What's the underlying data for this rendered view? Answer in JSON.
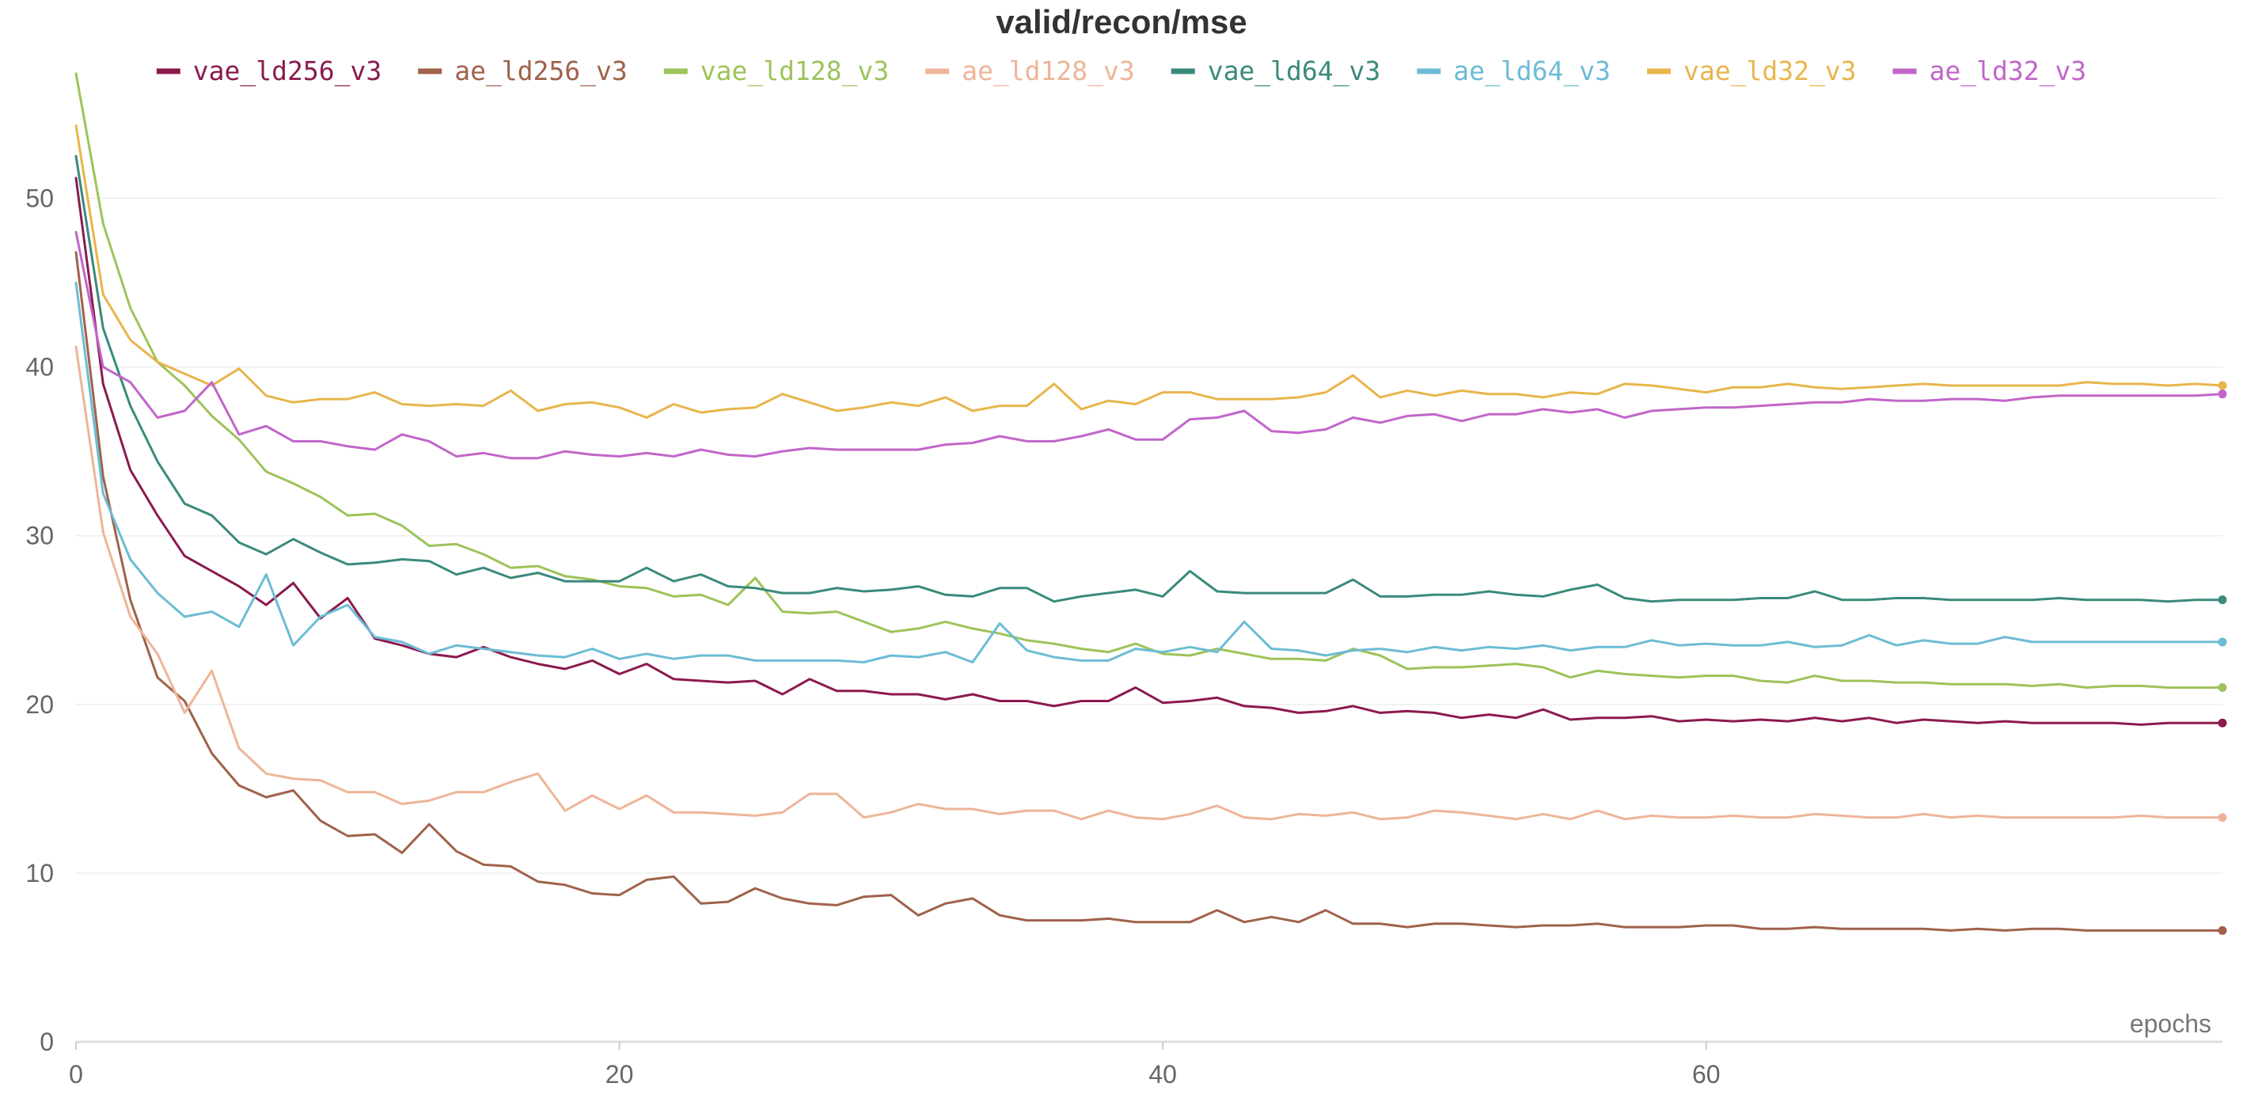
{
  "chart_data": {
    "type": "line",
    "title": "valid/recon/mse",
    "xlabel": "epochs",
    "ylabel": "",
    "xlim": [
      0,
      79
    ],
    "ylim": [
      0,
      58
    ],
    "x_ticks": [
      0,
      20,
      40,
      60
    ],
    "y_ticks": [
      0,
      10,
      20,
      30,
      40,
      50
    ],
    "grid": true,
    "legend_position": "top",
    "end_markers": true,
    "series": [
      {
        "name": "vae_ld256_v3",
        "color": "#8b1a4f",
        "values": [
          51.2,
          39.0,
          33.9,
          31.2,
          28.8,
          27.9,
          27.0,
          25.9,
          27.2,
          25.1,
          26.3,
          23.9,
          23.5,
          23.0,
          22.8,
          23.4,
          22.8,
          22.4,
          22.1,
          22.6,
          21.8,
          22.4,
          21.5,
          21.4,
          21.3,
          21.4,
          20.6,
          21.5,
          20.8,
          20.8,
          20.6,
          20.6,
          20.3,
          20.6,
          20.2,
          20.2,
          19.9,
          20.2,
          20.2,
          21.0,
          20.1,
          20.2,
          20.4,
          19.9,
          19.8,
          19.5,
          19.6,
          19.9,
          19.5,
          19.6,
          19.5,
          19.2,
          19.4,
          19.2,
          19.7,
          19.1,
          19.2,
          19.2,
          19.3,
          19.0,
          19.1,
          19.0,
          19.1,
          19.0,
          19.2,
          19.0,
          19.2,
          18.9,
          19.1,
          19.0,
          18.9,
          19.0,
          18.9,
          18.9,
          18.9,
          18.9,
          18.8,
          18.9,
          18.9,
          18.9
        ]
      },
      {
        "name": "ae_ld256_v3",
        "color": "#a0624a",
        "values": [
          46.8,
          33.5,
          26.2,
          21.6,
          20.2,
          17.1,
          15.2,
          14.5,
          14.9,
          13.1,
          12.2,
          12.3,
          11.2,
          12.9,
          11.3,
          10.5,
          10.4,
          9.5,
          9.3,
          8.8,
          8.7,
          9.6,
          9.8,
          8.2,
          8.3,
          9.1,
          8.5,
          8.2,
          8.1,
          8.6,
          8.7,
          7.5,
          8.2,
          8.5,
          7.5,
          7.2,
          7.2,
          7.2,
          7.3,
          7.1,
          7.1,
          7.1,
          7.8,
          7.1,
          7.4,
          7.1,
          7.8,
          7.0,
          7.0,
          6.8,
          7.0,
          7.0,
          6.9,
          6.8,
          6.9,
          6.9,
          7.0,
          6.8,
          6.8,
          6.8,
          6.9,
          6.9,
          6.7,
          6.7,
          6.8,
          6.7,
          6.7,
          6.7,
          6.7,
          6.6,
          6.7,
          6.6,
          6.7,
          6.7,
          6.6,
          6.6,
          6.6,
          6.6,
          6.6,
          6.6
        ]
      },
      {
        "name": "vae_ld128_v3",
        "color": "#9dc35a",
        "values": [
          57.4,
          48.5,
          43.5,
          40.3,
          38.9,
          37.1,
          35.7,
          33.8,
          33.1,
          32.3,
          31.2,
          31.3,
          30.6,
          29.4,
          29.5,
          28.9,
          28.1,
          28.2,
          27.6,
          27.4,
          27.0,
          26.9,
          26.4,
          26.5,
          25.9,
          27.5,
          25.5,
          25.4,
          25.5,
          24.9,
          24.3,
          24.5,
          24.9,
          24.5,
          24.2,
          23.8,
          23.6,
          23.3,
          23.1,
          23.6,
          23.0,
          22.9,
          23.3,
          23.0,
          22.7,
          22.7,
          22.6,
          23.3,
          22.9,
          22.1,
          22.2,
          22.2,
          22.3,
          22.4,
          22.2,
          21.6,
          22.0,
          21.8,
          21.7,
          21.6,
          21.7,
          21.7,
          21.4,
          21.3,
          21.7,
          21.4,
          21.4,
          21.3,
          21.3,
          21.2,
          21.2,
          21.2,
          21.1,
          21.2,
          21.0,
          21.1,
          21.1,
          21.0,
          21.0,
          21.0
        ]
      },
      {
        "name": "ae_ld128_v3",
        "color": "#edb598",
        "values": [
          41.2,
          30.2,
          25.2,
          23.0,
          19.5,
          22.0,
          17.4,
          15.9,
          15.6,
          15.5,
          14.8,
          14.8,
          14.1,
          14.3,
          14.8,
          14.8,
          15.4,
          15.9,
          13.7,
          14.6,
          13.8,
          14.6,
          13.6,
          13.6,
          13.5,
          13.4,
          13.6,
          14.7,
          14.7,
          13.3,
          13.6,
          14.1,
          13.8,
          13.8,
          13.5,
          13.7,
          13.7,
          13.2,
          13.7,
          13.3,
          13.2,
          13.5,
          14.0,
          13.3,
          13.2,
          13.5,
          13.4,
          13.6,
          13.2,
          13.3,
          13.7,
          13.6,
          13.4,
          13.2,
          13.5,
          13.2,
          13.7,
          13.2,
          13.4,
          13.3,
          13.3,
          13.4,
          13.3,
          13.3,
          13.5,
          13.4,
          13.3,
          13.3,
          13.5,
          13.3,
          13.4,
          13.3,
          13.3,
          13.3,
          13.3,
          13.3,
          13.4,
          13.3,
          13.3,
          13.3
        ]
      },
      {
        "name": "vae_ld64_v3",
        "color": "#3a8a7c",
        "values": [
          52.5,
          42.3,
          37.7,
          34.4,
          31.9,
          31.2,
          29.6,
          28.9,
          29.8,
          29.0,
          28.3,
          28.4,
          28.6,
          28.5,
          27.7,
          28.1,
          27.5,
          27.8,
          27.3,
          27.3,
          27.3,
          28.1,
          27.3,
          27.7,
          27.0,
          26.9,
          26.6,
          26.6,
          26.9,
          26.7,
          26.8,
          27.0,
          26.5,
          26.4,
          26.9,
          26.9,
          26.1,
          26.4,
          26.6,
          26.8,
          26.4,
          27.9,
          26.7,
          26.6,
          26.6,
          26.6,
          26.6,
          27.4,
          26.4,
          26.4,
          26.5,
          26.5,
          26.7,
          26.5,
          26.4,
          26.8,
          27.1,
          26.3,
          26.1,
          26.2,
          26.2,
          26.2,
          26.3,
          26.3,
          26.7,
          26.2,
          26.2,
          26.3,
          26.3,
          26.2,
          26.2,
          26.2,
          26.2,
          26.3,
          26.2,
          26.2,
          26.2,
          26.1,
          26.2,
          26.2
        ]
      },
      {
        "name": "ae_ld64_v3",
        "color": "#6cbcd5",
        "values": [
          45.0,
          32.5,
          28.6,
          26.6,
          25.2,
          25.5,
          24.6,
          27.7,
          23.5,
          25.2,
          25.9,
          24.0,
          23.7,
          23.0,
          23.5,
          23.3,
          23.1,
          22.9,
          22.8,
          23.3,
          22.7,
          23.0,
          22.7,
          22.9,
          22.9,
          22.6,
          22.6,
          22.6,
          22.6,
          22.5,
          22.9,
          22.8,
          23.1,
          22.5,
          24.8,
          23.2,
          22.8,
          22.6,
          22.6,
          23.3,
          23.1,
          23.4,
          23.1,
          24.9,
          23.3,
          23.2,
          22.9,
          23.2,
          23.3,
          23.1,
          23.4,
          23.2,
          23.4,
          23.3,
          23.5,
          23.2,
          23.4,
          23.4,
          23.8,
          23.5,
          23.6,
          23.5,
          23.5,
          23.7,
          23.4,
          23.5,
          24.1,
          23.5,
          23.8,
          23.6,
          23.6,
          24.0,
          23.7,
          23.7,
          23.7,
          23.7,
          23.7,
          23.7,
          23.7,
          23.7
        ]
      },
      {
        "name": "vae_ld32_v3",
        "color": "#e8b54c",
        "values": [
          54.3,
          44.3,
          41.6,
          40.3,
          39.6,
          38.9,
          39.9,
          38.3,
          37.9,
          38.1,
          38.1,
          38.5,
          37.8,
          37.7,
          37.8,
          37.7,
          38.6,
          37.4,
          37.8,
          37.9,
          37.6,
          37.0,
          37.8,
          37.3,
          37.5,
          37.6,
          38.4,
          37.9,
          37.4,
          37.6,
          37.9,
          37.7,
          38.2,
          37.4,
          37.7,
          37.7,
          39.0,
          37.5,
          38.0,
          37.8,
          38.5,
          38.5,
          38.1,
          38.1,
          38.1,
          38.2,
          38.5,
          39.5,
          38.2,
          38.6,
          38.3,
          38.6,
          38.4,
          38.4,
          38.2,
          38.5,
          38.4,
          39.0,
          38.9,
          38.7,
          38.5,
          38.8,
          38.8,
          39.0,
          38.8,
          38.7,
          38.8,
          38.9,
          39.0,
          38.9,
          38.9,
          38.9,
          38.9,
          38.9,
          39.1,
          39.0,
          39.0,
          38.9,
          39.0,
          38.9
        ]
      },
      {
        "name": "ae_ld32_v3",
        "color": "#c166c9",
        "values": [
          48.0,
          40.0,
          39.1,
          37.0,
          37.4,
          39.1,
          36.0,
          36.5,
          35.6,
          35.6,
          35.3,
          35.1,
          36.0,
          35.6,
          34.7,
          34.9,
          34.6,
          34.6,
          35.0,
          34.8,
          34.7,
          34.9,
          34.7,
          35.1,
          34.8,
          34.7,
          35.0,
          35.2,
          35.1,
          35.1,
          35.1,
          35.1,
          35.4,
          35.5,
          35.9,
          35.6,
          35.6,
          35.9,
          36.3,
          35.7,
          35.7,
          36.9,
          37.0,
          37.4,
          36.2,
          36.1,
          36.3,
          37.0,
          36.7,
          37.1,
          37.2,
          36.8,
          37.2,
          37.2,
          37.5,
          37.3,
          37.5,
          37.0,
          37.4,
          37.5,
          37.6,
          37.6,
          37.7,
          37.8,
          37.9,
          37.9,
          38.1,
          38.0,
          38.0,
          38.1,
          38.1,
          38.0,
          38.2,
          38.3,
          38.3,
          38.3,
          38.3,
          38.3,
          38.3,
          38.4
        ]
      }
    ]
  }
}
